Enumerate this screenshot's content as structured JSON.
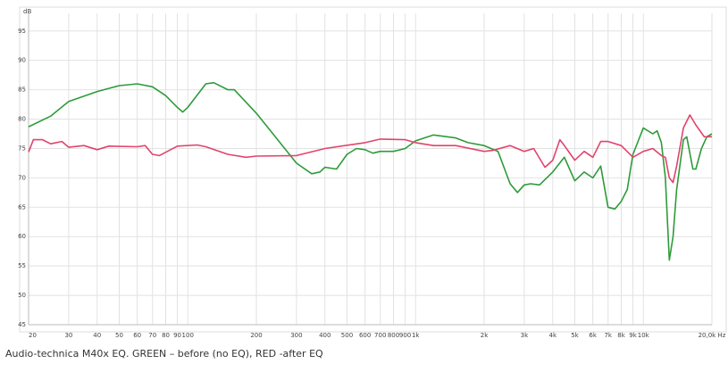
{
  "chart_data": {
    "type": "line",
    "y_unit": "dB",
    "caption": "Audio-technica M40x EQ. GREEN – before (no EQ), RED -after EQ",
    "xscale": "log",
    "grid": true,
    "xlim": [
      20,
      20000
    ],
    "ylim": [
      45,
      98
    ],
    "yticks": [
      45,
      50,
      55,
      60,
      65,
      70,
      75,
      80,
      85,
      90,
      95
    ],
    "xticks": [
      20,
      30,
      40,
      50,
      60,
      70,
      80,
      90,
      100,
      200,
      300,
      400,
      500,
      600,
      700,
      800,
      900,
      {
        "value": 1000,
        "label": "1k"
      },
      {
        "value": 2000,
        "label": "2k"
      },
      {
        "value": 3000,
        "label": "3k"
      },
      {
        "value": 4000,
        "label": "4k"
      },
      {
        "value": 5000,
        "label": "5k"
      },
      {
        "value": 6000,
        "label": "6k"
      },
      {
        "value": 7000,
        "label": "7k"
      },
      {
        "value": 8000,
        "label": "8k"
      },
      {
        "value": 9000,
        "label": "9k"
      },
      {
        "value": 10000,
        "label": "10k"
      },
      {
        "value": 20000,
        "label": "20,0k Hz"
      }
    ],
    "series": [
      {
        "color": "#2e9b3a",
        "x": [
          20,
          25,
          30,
          40,
          50,
          60,
          70,
          80,
          90,
          95,
          100,
          120,
          130,
          150,
          160,
          200,
          300,
          350,
          380,
          400,
          450,
          500,
          550,
          600,
          650,
          700,
          800,
          900,
          1000,
          1200,
          1500,
          1700,
          2000,
          2300,
          2600,
          2800,
          3000,
          3200,
          3500,
          4000,
          4500,
          5000,
          5500,
          6000,
          6500,
          7000,
          7500,
          8000,
          8500,
          9000,
          10000,
          11000,
          11500,
          12000,
          12500,
          13000,
          13500,
          14000,
          15000,
          15500,
          16500,
          17000,
          18000,
          19000,
          20000
        ],
        "values": [
          78.7,
          80.5,
          83,
          84.7,
          85.7,
          86,
          85.5,
          84,
          82,
          81.2,
          82,
          86,
          86.2,
          85,
          85,
          81,
          72.5,
          70.7,
          71,
          71.8,
          71.5,
          74,
          75,
          74.8,
          74.2,
          74.5,
          74.5,
          75,
          76.3,
          77.3,
          76.8,
          76,
          75.5,
          74.5,
          69,
          67.5,
          68.8,
          69,
          68.8,
          71,
          73.5,
          69.5,
          71,
          70,
          72,
          65,
          64.7,
          66,
          68,
          74,
          78.5,
          77.5,
          78,
          76,
          70,
          56,
          60,
          68,
          76.5,
          77,
          71.5,
          71.5,
          75,
          77,
          77.5
        ]
      },
      {
        "color": "#e0446c",
        "x": [
          20,
          21,
          23,
          25,
          28,
          30,
          35,
          40,
          45,
          60,
          65,
          70,
          75,
          90,
          110,
          120,
          150,
          180,
          200,
          300,
          400,
          600,
          700,
          900,
          1000,
          1200,
          1500,
          2000,
          2200,
          2600,
          3000,
          3300,
          3700,
          4000,
          4300,
          4500,
          5000,
          5500,
          6000,
          6500,
          7000,
          8000,
          9000,
          10000,
          11000,
          12000,
          12500,
          13000,
          13500,
          14000,
          15000,
          16000,
          17000,
          18500,
          20000
        ],
        "values": [
          74.4,
          76.5,
          76.5,
          75.8,
          76.2,
          75.2,
          75.5,
          74.8,
          75.4,
          75.3,
          75.5,
          74,
          73.8,
          75.4,
          75.6,
          75.3,
          74,
          73.5,
          73.7,
          73.8,
          75,
          76,
          76.6,
          76.5,
          76,
          75.5,
          75.5,
          74.5,
          74.7,
          75.5,
          74.5,
          75,
          71.8,
          73,
          76.5,
          75.5,
          73,
          74.5,
          73.5,
          76.2,
          76.2,
          75.5,
          73.5,
          74.5,
          75,
          73.8,
          73.5,
          70,
          69.2,
          72,
          78.5,
          80.7,
          79,
          77,
          77
        ]
      }
    ]
  }
}
